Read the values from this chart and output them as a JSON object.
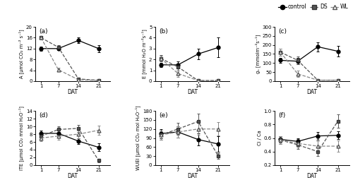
{
  "x": [
    1,
    7,
    14,
    21
  ],
  "panels": [
    {
      "label": "(a)",
      "ylabel": "A [μmol CO₂ m⁻² s⁻¹]",
      "ylim": [
        0,
        20
      ],
      "yticks": [
        0,
        4,
        8,
        12,
        16,
        20
      ],
      "control": {
        "y": [
          12.0,
          12.0,
          15.0,
          12.0
        ],
        "yerr": [
          0.8,
          0.7,
          1.0,
          1.3
        ]
      },
      "ds": {
        "y": [
          16.0,
          12.5,
          0.8,
          0.3
        ],
        "yerr": [
          0.7,
          0.8,
          0.3,
          0.2
        ]
      },
      "wl": {
        "y": [
          16.0,
          4.2,
          0.5,
          0.2
        ],
        "yerr": [
          0.6,
          0.7,
          0.3,
          0.15
        ]
      }
    },
    {
      "label": "(b)",
      "ylabel": "E [mmol H₂O m⁻²s⁻¹]",
      "ylim": [
        0,
        5
      ],
      "yticks": [
        0,
        1,
        2,
        3,
        4,
        5
      ],
      "control": {
        "y": [
          1.5,
          1.5,
          2.5,
          3.1
        ],
        "yerr": [
          0.2,
          0.3,
          0.5,
          0.9
        ]
      },
      "ds": {
        "y": [
          2.1,
          1.3,
          0.05,
          0.05
        ],
        "yerr": [
          0.3,
          0.3,
          0.04,
          0.03
        ]
      },
      "wl": {
        "y": [
          2.1,
          0.7,
          0.05,
          0.05
        ],
        "yerr": [
          0.25,
          0.3,
          0.04,
          0.03
        ]
      }
    },
    {
      "label": "(c)",
      "ylabel": "gₛ [mmolm⁻²s⁻¹]",
      "ylim": [
        0,
        300
      ],
      "yticks": [
        0,
        50,
        100,
        150,
        200,
        250,
        300
      ],
      "control": {
        "y": [
          115,
          110,
          190,
          165
        ],
        "yerr": [
          15,
          18,
          25,
          30
        ]
      },
      "ds": {
        "y": [
          160,
          115,
          5,
          5
        ],
        "yerr": [
          20,
          20,
          3,
          3
        ]
      },
      "wl": {
        "y": [
          160,
          40,
          5,
          5
        ],
        "yerr": [
          18,
          18,
          3,
          3
        ]
      }
    },
    {
      "label": "(d)",
      "ylabel": "ITE [μmol CO₂ mmol H₂O⁻¹]",
      "ylim": [
        0,
        14
      ],
      "yticks": [
        0,
        2,
        4,
        6,
        8,
        10,
        12,
        14
      ],
      "control": {
        "y": [
          8.2,
          8.2,
          6.2,
          4.6
        ],
        "yerr": [
          0.8,
          0.9,
          0.8,
          1.0
        ]
      },
      "ds": {
        "y": [
          7.5,
          9.2,
          9.5,
          1.2
        ],
        "yerr": [
          0.7,
          0.8,
          0.9,
          0.4
        ]
      },
      "wl": {
        "y": [
          7.0,
          7.5,
          8.0,
          9.0
        ],
        "yerr": [
          0.8,
          0.9,
          1.0,
          1.2
        ]
      }
    },
    {
      "label": "(e)",
      "ylabel": "WUEI [μmol CO₂ mol H₂O⁻¹]",
      "ylim": [
        0,
        180
      ],
      "yticks": [
        0,
        30,
        60,
        90,
        120,
        150,
        180
      ],
      "control": {
        "y": [
          105,
          110,
          85,
          70
        ],
        "yerr": [
          15,
          18,
          20,
          25
        ]
      },
      "ds": {
        "y": [
          100,
          120,
          145,
          30
        ],
        "yerr": [
          15,
          20,
          25,
          10
        ]
      },
      "wl": {
        "y": [
          100,
          110,
          120,
          120
        ],
        "yerr": [
          15,
          18,
          20,
          22
        ]
      }
    },
    {
      "label": "(f)",
      "ylabel": "Ci / Ca",
      "ylim": [
        0.2,
        1.0
      ],
      "yticks": [
        0.2,
        0.4,
        0.6,
        0.8,
        1.0
      ],
      "control": {
        "y": [
          0.58,
          0.55,
          0.63,
          0.64
        ],
        "yerr": [
          0.05,
          0.05,
          0.06,
          0.06
        ]
      },
      "ds": {
        "y": [
          0.57,
          0.5,
          0.4,
          0.85
        ],
        "yerr": [
          0.06,
          0.06,
          0.07,
          0.1
        ]
      },
      "wl": {
        "y": [
          0.57,
          0.52,
          0.48,
          0.48
        ],
        "yerr": [
          0.06,
          0.06,
          0.07,
          0.08
        ]
      }
    }
  ],
  "colors": {
    "control": "#000000",
    "ds": "#555555",
    "wl": "#888888"
  },
  "markers": {
    "control": "o",
    "ds": "s",
    "wl": "^"
  },
  "linestyles": {
    "control": "-",
    "ds": "--",
    "wl": "--"
  },
  "markerfacecolors": {
    "control": "#000000",
    "ds": "#555555",
    "wl": "white"
  },
  "markeredgecolors": {
    "control": "#000000",
    "ds": "#333333",
    "wl": "#555555"
  },
  "legend": {
    "entries": [
      "control",
      "DS",
      "WL"
    ],
    "markers": [
      "o",
      "s",
      "^"
    ],
    "colors": [
      "#000000",
      "#555555",
      "#888888"
    ],
    "mfc": [
      "#000000",
      "#555555",
      "white"
    ],
    "mec": [
      "#000000",
      "#333333",
      "#555555"
    ],
    "ls": [
      "-",
      "--",
      "--"
    ]
  },
  "fig_bgcolor": "#ffffff"
}
